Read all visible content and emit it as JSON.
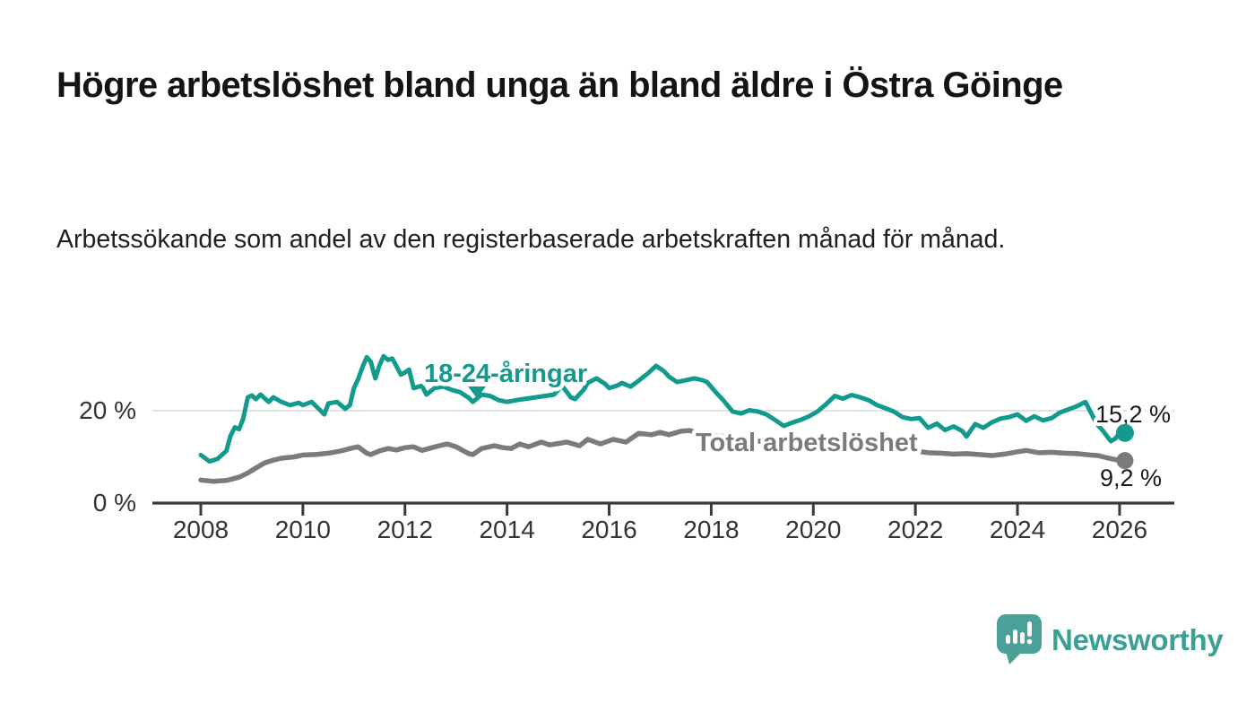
{
  "header": {
    "title": "Högre arbetslöshet bland unga än bland äldre i Östra Göinge",
    "subtitle": "Arbetssökande som andel av den registerbaserade arbetskraften månad för månad."
  },
  "footer": {
    "brand": "Newsworthy",
    "brand_color": "#3d9e95",
    "logo": "newsworthy-speech-bubble-bar-chart-icon"
  },
  "chart_data": {
    "type": "line",
    "title": "Högre arbetslöshet bland unga än bland äldre i Östra Göinge",
    "subtitle": "Arbetssökande som andel av den registerbaserade arbetskraften månad för månad.",
    "xlabel": "",
    "ylabel": "",
    "x_unit": "year",
    "y_unit": "%",
    "xlim": [
      2007.05,
      2027.1
    ],
    "ylim": [
      0,
      33
    ],
    "grid": "single horizontal gridline at 20 %",
    "legend": "inline labels next to lines",
    "x_ticks": [
      2008,
      2010,
      2012,
      2014,
      2016,
      2018,
      2020,
      2022,
      2024,
      2026
    ],
    "y_ticks": [
      {
        "value": 0,
        "label": "0 %"
      },
      {
        "value": 20,
        "label": "20 %"
      }
    ],
    "colors": {
      "youth_line": "#129a8d",
      "total_line": "#7b7b7b",
      "axis": "#3a3a3a",
      "gridline": "#d9d9d9",
      "end_label_text": "#1a1a1a"
    },
    "series": [
      {
        "name": "18-24-åringar",
        "color": "#129a8d",
        "end_label": "15,2 %",
        "end_value": 15.2,
        "points": [
          [
            2008.0,
            10.4
          ],
          [
            2008.17,
            9.0
          ],
          [
            2008.33,
            9.6
          ],
          [
            2008.5,
            11.3
          ],
          [
            2008.58,
            14.5
          ],
          [
            2008.67,
            16.4
          ],
          [
            2008.75,
            16.0
          ],
          [
            2008.83,
            18.3
          ],
          [
            2008.92,
            22.9
          ],
          [
            2009.0,
            23.3
          ],
          [
            2009.08,
            22.5
          ],
          [
            2009.17,
            23.5
          ],
          [
            2009.33,
            21.9
          ],
          [
            2009.42,
            22.9
          ],
          [
            2009.58,
            21.9
          ],
          [
            2009.75,
            21.2
          ],
          [
            2009.92,
            21.7
          ],
          [
            2010.0,
            21.2
          ],
          [
            2010.17,
            21.9
          ],
          [
            2010.33,
            20.2
          ],
          [
            2010.42,
            19.2
          ],
          [
            2010.5,
            21.6
          ],
          [
            2010.67,
            21.9
          ],
          [
            2010.83,
            20.4
          ],
          [
            2010.92,
            21.2
          ],
          [
            2011.0,
            24.9
          ],
          [
            2011.08,
            26.8
          ],
          [
            2011.17,
            29.5
          ],
          [
            2011.25,
            31.6
          ],
          [
            2011.33,
            30.6
          ],
          [
            2011.42,
            27.0
          ],
          [
            2011.5,
            29.8
          ],
          [
            2011.58,
            31.8
          ],
          [
            2011.67,
            31.0
          ],
          [
            2011.75,
            31.3
          ],
          [
            2011.83,
            29.7
          ],
          [
            2011.92,
            27.8
          ],
          [
            2012.0,
            28.3
          ],
          [
            2012.08,
            28.9
          ],
          [
            2012.17,
            24.9
          ],
          [
            2012.33,
            25.4
          ],
          [
            2012.42,
            23.5
          ],
          [
            2012.58,
            24.9
          ],
          [
            2012.75,
            25.2
          ],
          [
            2012.92,
            24.5
          ],
          [
            2013.08,
            24.0
          ],
          [
            2013.25,
            22.8
          ],
          [
            2013.33,
            21.9
          ],
          [
            2013.5,
            23.5
          ],
          [
            2013.67,
            23.2
          ],
          [
            2013.83,
            22.3
          ],
          [
            2014.0,
            21.9
          ],
          [
            2014.25,
            22.4
          ],
          [
            2014.5,
            22.8
          ],
          [
            2014.75,
            23.2
          ],
          [
            2014.92,
            23.5
          ],
          [
            2015.08,
            25.4
          ],
          [
            2015.25,
            22.9
          ],
          [
            2015.33,
            22.5
          ],
          [
            2015.5,
            24.5
          ],
          [
            2015.58,
            26.0
          ],
          [
            2015.75,
            27.0
          ],
          [
            2015.92,
            25.8
          ],
          [
            2016.0,
            24.9
          ],
          [
            2016.17,
            25.5
          ],
          [
            2016.25,
            26.0
          ],
          [
            2016.42,
            25.2
          ],
          [
            2016.58,
            26.5
          ],
          [
            2016.75,
            28.0
          ],
          [
            2016.92,
            29.7
          ],
          [
            2017.08,
            28.5
          ],
          [
            2017.17,
            27.4
          ],
          [
            2017.33,
            26.2
          ],
          [
            2017.5,
            26.6
          ],
          [
            2017.67,
            27.0
          ],
          [
            2017.83,
            26.6
          ],
          [
            2017.92,
            26.2
          ],
          [
            2018.08,
            24.1
          ],
          [
            2018.25,
            22.1
          ],
          [
            2018.42,
            19.8
          ],
          [
            2018.58,
            19.4
          ],
          [
            2018.75,
            20.1
          ],
          [
            2018.92,
            19.8
          ],
          [
            2019.08,
            19.2
          ],
          [
            2019.25,
            18.0
          ],
          [
            2019.42,
            16.7
          ],
          [
            2019.58,
            17.4
          ],
          [
            2019.75,
            18.0
          ],
          [
            2019.92,
            18.8
          ],
          [
            2020.08,
            19.8
          ],
          [
            2020.25,
            21.4
          ],
          [
            2020.42,
            23.2
          ],
          [
            2020.58,
            22.6
          ],
          [
            2020.75,
            23.4
          ],
          [
            2020.92,
            22.9
          ],
          [
            2021.08,
            22.3
          ],
          [
            2021.25,
            21.2
          ],
          [
            2021.42,
            20.5
          ],
          [
            2021.58,
            19.8
          ],
          [
            2021.75,
            18.6
          ],
          [
            2021.92,
            18.2
          ],
          [
            2022.08,
            18.4
          ],
          [
            2022.25,
            16.3
          ],
          [
            2022.42,
            17.2
          ],
          [
            2022.58,
            15.8
          ],
          [
            2022.75,
            16.6
          ],
          [
            2022.92,
            15.6
          ],
          [
            2023.0,
            14.4
          ],
          [
            2023.17,
            17.1
          ],
          [
            2023.33,
            16.3
          ],
          [
            2023.5,
            17.5
          ],
          [
            2023.67,
            18.3
          ],
          [
            2023.83,
            18.6
          ],
          [
            2024.0,
            19.2
          ],
          [
            2024.17,
            17.8
          ],
          [
            2024.33,
            18.8
          ],
          [
            2024.5,
            17.9
          ],
          [
            2024.67,
            18.4
          ],
          [
            2024.83,
            19.6
          ],
          [
            2025.0,
            20.3
          ],
          [
            2025.17,
            21.0
          ],
          [
            2025.33,
            21.9
          ],
          [
            2025.5,
            18.3
          ],
          [
            2025.58,
            16.8
          ],
          [
            2025.67,
            15.7
          ],
          [
            2025.83,
            13.4
          ],
          [
            2025.92,
            14.0
          ],
          [
            2026.0,
            15.2
          ]
        ]
      },
      {
        "name": "Total arbetslöshet",
        "color": "#7b7b7b",
        "end_label": "9,2 %",
        "end_value": 9.2,
        "points": [
          [
            2008.0,
            5.0
          ],
          [
            2008.25,
            4.7
          ],
          [
            2008.5,
            4.9
          ],
          [
            2008.75,
            5.6
          ],
          [
            2008.92,
            6.5
          ],
          [
            2009.08,
            7.6
          ],
          [
            2009.25,
            8.7
          ],
          [
            2009.42,
            9.3
          ],
          [
            2009.58,
            9.7
          ],
          [
            2009.83,
            10.0
          ],
          [
            2010.0,
            10.4
          ],
          [
            2010.25,
            10.5
          ],
          [
            2010.5,
            10.8
          ],
          [
            2010.75,
            11.3
          ],
          [
            2010.92,
            11.8
          ],
          [
            2011.08,
            12.2
          ],
          [
            2011.25,
            10.8
          ],
          [
            2011.33,
            10.5
          ],
          [
            2011.5,
            11.3
          ],
          [
            2011.67,
            11.8
          ],
          [
            2011.83,
            11.5
          ],
          [
            2012.0,
            12.0
          ],
          [
            2012.17,
            12.2
          ],
          [
            2012.33,
            11.4
          ],
          [
            2012.5,
            11.9
          ],
          [
            2012.67,
            12.4
          ],
          [
            2012.83,
            12.8
          ],
          [
            2013.0,
            12.2
          ],
          [
            2013.25,
            10.7
          ],
          [
            2013.33,
            10.5
          ],
          [
            2013.5,
            11.8
          ],
          [
            2013.75,
            12.4
          ],
          [
            2013.92,
            12.0
          ],
          [
            2014.08,
            11.8
          ],
          [
            2014.25,
            12.8
          ],
          [
            2014.42,
            12.2
          ],
          [
            2014.67,
            13.2
          ],
          [
            2014.83,
            12.6
          ],
          [
            2015.0,
            12.9
          ],
          [
            2015.17,
            13.2
          ],
          [
            2015.42,
            12.4
          ],
          [
            2015.58,
            13.8
          ],
          [
            2015.83,
            12.8
          ],
          [
            2016.08,
            13.8
          ],
          [
            2016.33,
            13.2
          ],
          [
            2016.5,
            14.5
          ],
          [
            2016.58,
            15.1
          ],
          [
            2016.83,
            14.8
          ],
          [
            2017.0,
            15.3
          ],
          [
            2017.17,
            14.8
          ],
          [
            2017.42,
            15.6
          ],
          [
            2017.58,
            15.7
          ],
          [
            2017.75,
            15.1
          ],
          [
            2018.0,
            14.8
          ],
          [
            2018.5,
            14.0
          ],
          [
            2019.0,
            13.3
          ],
          [
            2019.5,
            12.9
          ],
          [
            2020.0,
            13.2
          ],
          [
            2020.5,
            13.6
          ],
          [
            2021.0,
            12.9
          ],
          [
            2021.5,
            12.1
          ],
          [
            2021.92,
            11.4
          ],
          [
            2022.25,
            10.9
          ],
          [
            2022.5,
            10.8
          ],
          [
            2022.75,
            10.6
          ],
          [
            2023.0,
            10.7
          ],
          [
            2023.25,
            10.5
          ],
          [
            2023.5,
            10.3
          ],
          [
            2023.75,
            10.6
          ],
          [
            2024.0,
            11.1
          ],
          [
            2024.17,
            11.4
          ],
          [
            2024.42,
            10.9
          ],
          [
            2024.67,
            11.0
          ],
          [
            2024.92,
            10.8
          ],
          [
            2025.17,
            10.7
          ],
          [
            2025.42,
            10.4
          ],
          [
            2025.58,
            10.3
          ],
          [
            2025.75,
            9.8
          ],
          [
            2025.92,
            9.4
          ],
          [
            2026.0,
            9.2
          ]
        ]
      }
    ]
  }
}
